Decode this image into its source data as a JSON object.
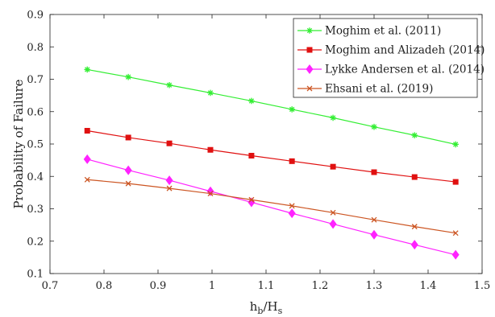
{
  "chart_data": {
    "type": "line",
    "title": "",
    "xlabel": "h_b/H_s",
    "xlabel_main": "h",
    "xlabel_sub1": "b",
    "xlabel_mid": "/H",
    "xlabel_sub2": "s",
    "ylabel": "Probability of Failure",
    "xlim": [
      0.7,
      1.5
    ],
    "ylim": [
      0.1,
      0.9
    ],
    "xticks": [
      0.7,
      0.8,
      0.9,
      1.0,
      1.1,
      1.2,
      1.3,
      1.4,
      1.5
    ],
    "xtick_labels": [
      "0.7",
      "0.8",
      "0.9",
      "1",
      "1.1",
      "1.2",
      "1.3",
      "1.4",
      "1.5"
    ],
    "yticks": [
      0.1,
      0.2,
      0.3,
      0.4,
      0.5,
      0.6,
      0.7,
      0.8,
      0.9
    ],
    "ytick_labels": [
      "0.1",
      "0.2",
      "0.3",
      "0.4",
      "0.5",
      "0.6",
      "0.7",
      "0.8",
      "0.9"
    ],
    "grid": false,
    "legend_position": "top-right",
    "x": [
      0.769,
      0.845,
      0.921,
      0.997,
      1.073,
      1.148,
      1.224,
      1.3,
      1.375,
      1.451
    ],
    "series": [
      {
        "name": "Moghim et al. (2011)",
        "color": "#33ee33",
        "marker": "asterisk",
        "values": [
          0.73,
          0.707,
          0.682,
          0.658,
          0.633,
          0.607,
          0.581,
          0.553,
          0.527,
          0.499
        ]
      },
      {
        "name": "Moghim and Alizadeh (2014)",
        "color": "#e01010",
        "marker": "square",
        "values": [
          0.541,
          0.52,
          0.502,
          0.482,
          0.464,
          0.447,
          0.43,
          0.413,
          0.398,
          0.383
        ]
      },
      {
        "name": "Lykke Andersen et al. (2014)",
        "color": "#ff22ff",
        "marker": "diamond",
        "values": [
          0.453,
          0.419,
          0.388,
          0.354,
          0.32,
          0.286,
          0.253,
          0.22,
          0.189,
          0.158
        ]
      },
      {
        "name": "Ehsani et al. (2019)",
        "color": "#cc5522",
        "marker": "x",
        "values": [
          0.39,
          0.378,
          0.363,
          0.347,
          0.328,
          0.309,
          0.288,
          0.266,
          0.245,
          0.225
        ]
      }
    ]
  }
}
